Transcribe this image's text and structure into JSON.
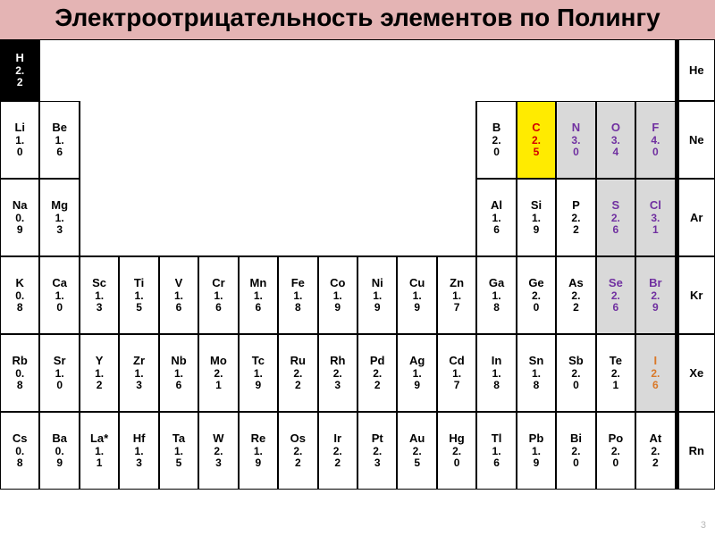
{
  "title": "Электроотрицательность элементов по Полингу",
  "page_number": "3",
  "colors": {
    "header_bg": "#e4b4b4",
    "black_bg": "#000000",
    "black_fg": "#ffffff",
    "yellow_bg": "#ffeb00",
    "red_text": "#d40000",
    "gray_bg": "#d9d9d9",
    "purple_text": "#7030a0",
    "orange_text": "#d97828"
  },
  "rows": [
    [
      {
        "sym": "H",
        "val": "2.2",
        "bg": "#000000",
        "fg": "#ffffff"
      },
      null,
      null,
      null,
      null,
      null,
      null,
      null,
      null,
      null,
      null,
      null,
      null,
      null,
      null,
      null,
      null,
      {
        "sym": "He",
        "val": ""
      }
    ],
    [
      {
        "sym": "Li",
        "val": "1.0"
      },
      {
        "sym": "Be",
        "val": "1.6"
      },
      null,
      null,
      null,
      null,
      null,
      null,
      null,
      null,
      null,
      null,
      {
        "sym": "B",
        "val": "2.0"
      },
      {
        "sym": "C",
        "val": "2.5",
        "bg": "#ffeb00",
        "fg": "#d40000"
      },
      {
        "sym": "N",
        "val": "3.0",
        "bg": "#d9d9d9",
        "fg": "#7030a0"
      },
      {
        "sym": "O",
        "val": "3.4",
        "bg": "#d9d9d9",
        "fg": "#7030a0"
      },
      {
        "sym": "F",
        "val": "4.0",
        "bg": "#d9d9d9",
        "fg": "#7030a0"
      },
      {
        "sym": "Ne",
        "val": ""
      }
    ],
    [
      {
        "sym": "Na",
        "val": "0.9"
      },
      {
        "sym": "Mg",
        "val": "1.3"
      },
      null,
      null,
      null,
      null,
      null,
      null,
      null,
      null,
      null,
      null,
      {
        "sym": "Al",
        "val": "1.6"
      },
      {
        "sym": "Si",
        "val": "1.9"
      },
      {
        "sym": "P",
        "val": "2.2"
      },
      {
        "sym": "S",
        "val": "2.6",
        "bg": "#d9d9d9",
        "fg": "#7030a0"
      },
      {
        "sym": "Cl",
        "val": "3.1",
        "bg": "#d9d9d9",
        "fg": "#7030a0"
      },
      {
        "sym": "Ar",
        "val": ""
      }
    ],
    [
      {
        "sym": "K",
        "val": "0.8"
      },
      {
        "sym": "Ca",
        "val": "1.0"
      },
      {
        "sym": "Sc",
        "val": "1.3"
      },
      {
        "sym": "Ti",
        "val": "1.5"
      },
      {
        "sym": "V",
        "val": "1.6"
      },
      {
        "sym": "Cr",
        "val": "1.6"
      },
      {
        "sym": "Mn",
        "val": "1.6"
      },
      {
        "sym": "Fe",
        "val": "1.8"
      },
      {
        "sym": "Co",
        "val": "1.9"
      },
      {
        "sym": "Ni",
        "val": "1.9"
      },
      {
        "sym": "Cu",
        "val": "1.9"
      },
      {
        "sym": "Zn",
        "val": "1.7"
      },
      {
        "sym": "Ga",
        "val": "1.8"
      },
      {
        "sym": "Ge",
        "val": "2.0"
      },
      {
        "sym": "As",
        "val": "2.2"
      },
      {
        "sym": "Se",
        "val": "2.6",
        "bg": "#d9d9d9",
        "fg": "#7030a0"
      },
      {
        "sym": "Br",
        "val": "2.9",
        "bg": "#d9d9d9",
        "fg": "#7030a0"
      },
      {
        "sym": "Kr",
        "val": ""
      }
    ],
    [
      {
        "sym": "Rb",
        "val": "0.8"
      },
      {
        "sym": "Sr",
        "val": "1.0"
      },
      {
        "sym": "Y",
        "val": "1.2"
      },
      {
        "sym": "Zr",
        "val": "1.3"
      },
      {
        "sym": "Nb",
        "val": "1.6"
      },
      {
        "sym": "Mo",
        "val": "2.1"
      },
      {
        "sym": "Tc",
        "val": "1.9"
      },
      {
        "sym": "Ru",
        "val": "2.2"
      },
      {
        "sym": "Rh",
        "val": "2.3"
      },
      {
        "sym": "Pd",
        "val": "2.2"
      },
      {
        "sym": "Ag",
        "val": "1.9"
      },
      {
        "sym": "Cd",
        "val": "1.7"
      },
      {
        "sym": "In",
        "val": "1.8"
      },
      {
        "sym": "Sn",
        "val": "1.8"
      },
      {
        "sym": "Sb",
        "val": "2.0"
      },
      {
        "sym": "Te",
        "val": "2.1"
      },
      {
        "sym": "I",
        "val": "2.6",
        "bg": "#d9d9d9",
        "fg": "#d97828"
      },
      {
        "sym": "Xe",
        "val": ""
      }
    ],
    [
      {
        "sym": "Cs",
        "val": "0.8"
      },
      {
        "sym": "Ba",
        "val": "0.9"
      },
      {
        "sym": "La*",
        "val": "1.1"
      },
      {
        "sym": "Hf",
        "val": "1.3"
      },
      {
        "sym": "Ta",
        "val": "1.5"
      },
      {
        "sym": "W",
        "val": "2.3"
      },
      {
        "sym": "Re",
        "val": "1.9"
      },
      {
        "sym": "Os",
        "val": "2.2"
      },
      {
        "sym": "Ir",
        "val": "2.2"
      },
      {
        "sym": "Pt",
        "val": "2.3"
      },
      {
        "sym": "Au",
        "val": "2.5"
      },
      {
        "sym": "Hg",
        "val": "2.0"
      },
      {
        "sym": "Tl",
        "val": "1.6"
      },
      {
        "sym": "Pb",
        "val": "1.9"
      },
      {
        "sym": "Bi",
        "val": "2.0"
      },
      {
        "sym": "Po",
        "val": "2.0"
      },
      {
        "sym": "At",
        "val": "2.2"
      },
      {
        "sym": "Rn",
        "val": ""
      }
    ]
  ]
}
